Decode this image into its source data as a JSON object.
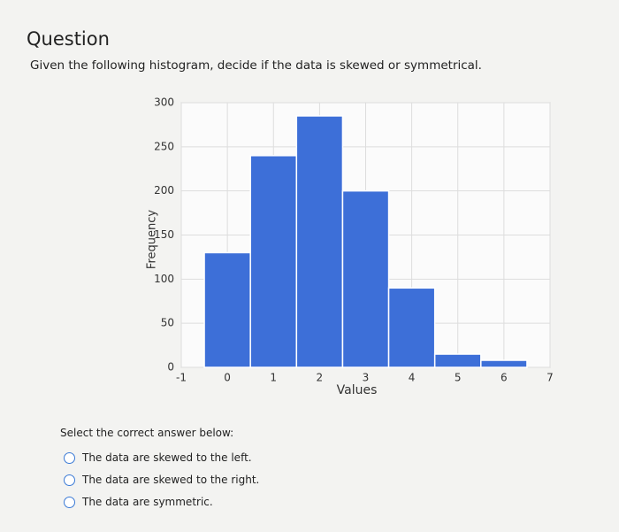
{
  "header": {
    "title": "Question"
  },
  "question": {
    "text": "Given the following histogram, decide if the data is skewed or symmetrical."
  },
  "chart_data": {
    "type": "histogram",
    "x_label": "Values",
    "y_label": "Frequency",
    "bins": [
      -0.5,
      0.5,
      1.5,
      2.5,
      3.5,
      4.5,
      5.5,
      6.5
    ],
    "counts": [
      130,
      240,
      285,
      200,
      90,
      15,
      8
    ],
    "color": "#3d6fd8",
    "xlim": [
      -1,
      7
    ],
    "xticks": [
      -1,
      0,
      1,
      2,
      3,
      4,
      5,
      6,
      7
    ],
    "ylim": [
      0,
      300
    ],
    "yticks": [
      0,
      50,
      100,
      150,
      200,
      250,
      300
    ],
    "grid": true
  },
  "answers": {
    "prompt": "Select the correct answer below:",
    "options": [
      "The data are skewed to the left.",
      "The data are skewed to the right.",
      "The data are symmetric."
    ]
  }
}
